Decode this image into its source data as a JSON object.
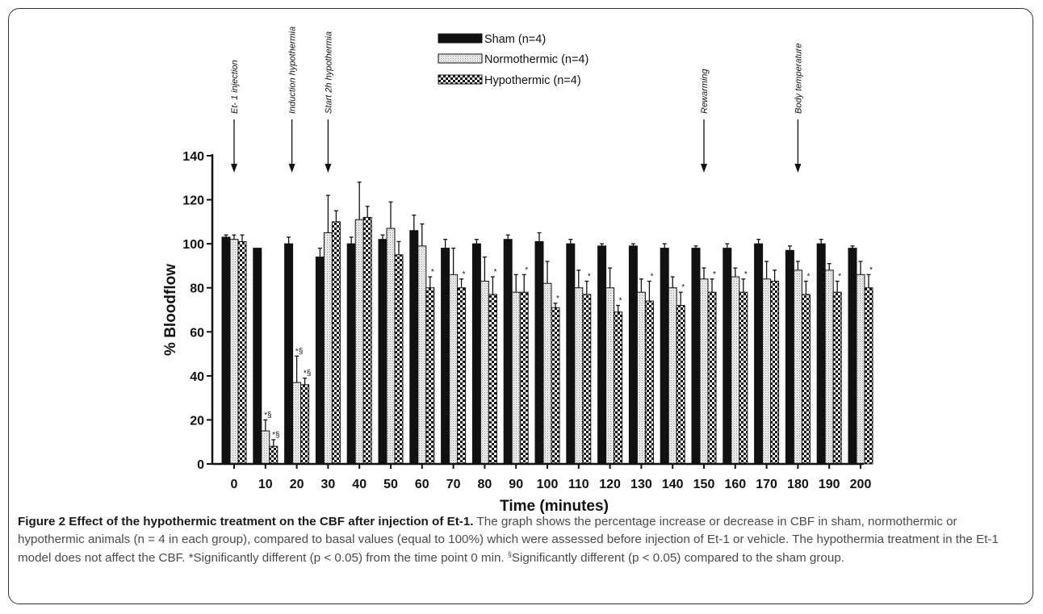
{
  "chart_data": {
    "type": "bar",
    "xlabel": "Time (minutes)",
    "ylabel": "% Bloodflow",
    "ylim": [
      0,
      140
    ],
    "yticks": [
      0,
      20,
      40,
      60,
      80,
      100,
      120,
      140
    ],
    "categories": [
      "0",
      "10",
      "20",
      "30",
      "40",
      "50",
      "60",
      "70",
      "80",
      "90",
      "100",
      "110",
      "120",
      "130",
      "140",
      "150",
      "160",
      "170",
      "180",
      "190",
      "200"
    ],
    "legend_position": "top-center",
    "series": [
      {
        "name": "Sham (n=4)",
        "pattern": "solid-black",
        "values": [
          103,
          98,
          100,
          94,
          100,
          102,
          106,
          98,
          100,
          102,
          101,
          100,
          99,
          99,
          98,
          98,
          98,
          100,
          97,
          100,
          98
        ],
        "errors": [
          1,
          0,
          3,
          4,
          3,
          2,
          7,
          4,
          2,
          2,
          4,
          2,
          1,
          1,
          2,
          1,
          2,
          2,
          2,
          2,
          1
        ]
      },
      {
        "name": "Normothermic (n=4)",
        "pattern": "light-dotted",
        "values": [
          102,
          15,
          37,
          105,
          111,
          107,
          99,
          86,
          83,
          78,
          82,
          80,
          80,
          78,
          80,
          84,
          85,
          84,
          88,
          88,
          86
        ],
        "errors": [
          2,
          5,
          12,
          17,
          17,
          12,
          10,
          12,
          11,
          8,
          10,
          8,
          9,
          6,
          5,
          5,
          4,
          8,
          4,
          3,
          6
        ],
        "markers": [
          null,
          "*§",
          "*§",
          null,
          null,
          null,
          null,
          null,
          null,
          null,
          null,
          null,
          null,
          null,
          null,
          null,
          null,
          null,
          null,
          null,
          null
        ]
      },
      {
        "name": "Hypothermic (n=4)",
        "pattern": "checkered",
        "values": [
          101,
          8,
          36,
          110,
          112,
          95,
          80,
          80,
          77,
          78,
          71,
          77,
          69,
          74,
          72,
          78,
          78,
          83,
          77,
          78,
          80
        ],
        "errors": [
          3,
          3,
          3,
          5,
          5,
          6,
          5,
          4,
          8,
          8,
          2,
          6,
          3,
          9,
          6,
          6,
          6,
          5,
          6,
          5,
          6
        ],
        "markers": [
          null,
          "*§",
          "*§",
          null,
          null,
          null,
          "*",
          "*",
          "*",
          "*",
          "*",
          "*",
          "*",
          "*",
          "*",
          "*",
          "*",
          null,
          "*",
          "*",
          "*"
        ]
      }
    ],
    "annotations": [
      {
        "label": "Et- 1 injection",
        "category": "0"
      },
      {
        "label": "Induction hypothermia",
        "category": "20"
      },
      {
        "label": "Start 2h hypothermia",
        "category": "30"
      },
      {
        "label": "Rewarming",
        "category": "150"
      },
      {
        "label": "Body temperature",
        "category": "180"
      }
    ]
  },
  "caption": {
    "title": "Figure 2 Effect of the hypothermic treatment on the CBF after injection of Et-1.",
    "text": " The graph shows the percentage increase or decrease in CBF in sham, normothermic or hypothermic animals (n = 4 in each group), compared to basal values (equal to 100%) which were assessed before injection of Et-1 or vehicle. The hypothermia treatment in the Et-1 model does not affect the CBF. *Significantly different (p < 0.05) from the time point 0 min. ",
    "sup": "§",
    "text2": "Significantly different (p < 0.05) compared to the sham group."
  }
}
